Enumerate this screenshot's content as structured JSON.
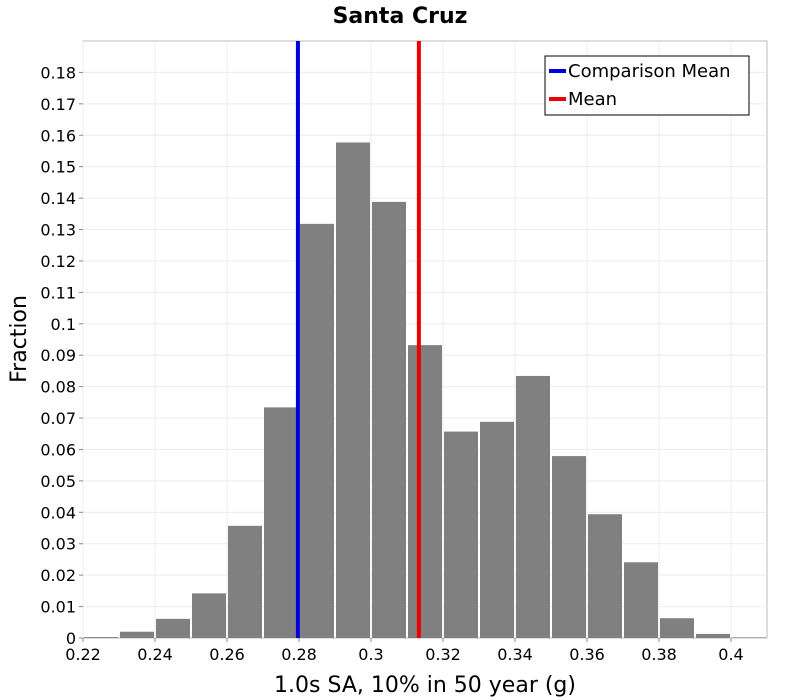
{
  "chart_data": {
    "type": "bar",
    "title": "Santa Cruz",
    "xlabel": "1.0s SA, 10% in 50 year (g)",
    "ylabel": "Fraction",
    "xlim": [
      0.22,
      0.41
    ],
    "ylim": [
      0,
      0.19
    ],
    "grid": true,
    "bin_width": 0.01,
    "bar_color": "#808080",
    "x_ticks": [
      "0.22",
      "0.24",
      "0.26",
      "0.28",
      "0.3",
      "0.32",
      "0.34",
      "0.36",
      "0.38",
      "0.4"
    ],
    "y_ticks": [
      "0",
      "0.01",
      "0.02",
      "0.03",
      "0.04",
      "0.05",
      "0.06",
      "0.07",
      "0.08",
      "0.09",
      "0.1",
      "0.11",
      "0.12",
      "0.13",
      "0.14",
      "0.15",
      "0.16",
      "0.17",
      "0.18"
    ],
    "bins": [
      {
        "x": 0.225,
        "value": 0.0003
      },
      {
        "x": 0.235,
        "value": 0.002
      },
      {
        "x": 0.245,
        "value": 0.0061
      },
      {
        "x": 0.255,
        "value": 0.0142
      },
      {
        "x": 0.265,
        "value": 0.0357
      },
      {
        "x": 0.275,
        "value": 0.0734
      },
      {
        "x": 0.285,
        "value": 0.1318
      },
      {
        "x": 0.295,
        "value": 0.1577
      },
      {
        "x": 0.305,
        "value": 0.1388
      },
      {
        "x": 0.315,
        "value": 0.0932
      },
      {
        "x": 0.325,
        "value": 0.0657
      },
      {
        "x": 0.335,
        "value": 0.0688
      },
      {
        "x": 0.345,
        "value": 0.0834
      },
      {
        "x": 0.355,
        "value": 0.0579
      },
      {
        "x": 0.365,
        "value": 0.0394
      },
      {
        "x": 0.375,
        "value": 0.0241
      },
      {
        "x": 0.385,
        "value": 0.0063
      },
      {
        "x": 0.395,
        "value": 0.0013
      },
      {
        "x": 0.405,
        "value": 0.0002
      }
    ],
    "vertical_lines": [
      {
        "name": "Comparison Mean",
        "x": 0.2797,
        "color": "#0000dd"
      },
      {
        "name": "Mean",
        "x": 0.3133,
        "color": "#ee0000"
      }
    ],
    "legend": {
      "position": "top-right",
      "entries": [
        {
          "label": "Comparison Mean",
          "color": "#0000dd"
        },
        {
          "label": "Mean",
          "color": "#ee0000"
        }
      ]
    }
  }
}
